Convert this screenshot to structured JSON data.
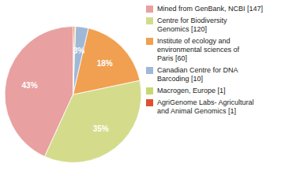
{
  "chart_data": {
    "type": "pie",
    "categories": [
      "Mined from GenBank, NCBI [147]",
      "Centre for Biodiversity\nGenomics [120]",
      "Institute of ecology and\nenvironmental sciences of\nParis [60]",
      "Canadian Centre for DNA\nBarcoding [10]",
      "Macrogen, Europe [1]",
      "AgriGenome Labs- Agricultural\nand Animal Genomics [1]"
    ],
    "values": [
      43,
      35,
      18,
      3,
      0.3,
      0.3
    ],
    "value_labels": [
      "43%",
      "35%",
      "18%",
      "3%",
      null,
      null
    ],
    "colors": [
      "#e8a0a0",
      "#d4dc8c",
      "#f0a050",
      "#a0b8d8",
      "#c8d870",
      "#e05030"
    ],
    "data_labels": true,
    "legend": "right"
  }
}
